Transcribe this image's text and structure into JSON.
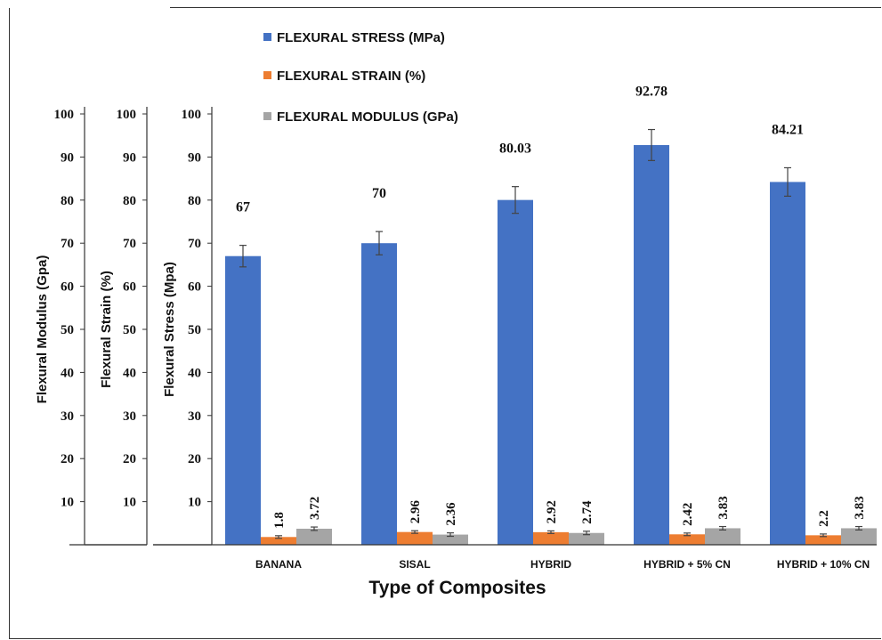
{
  "chart_data": {
    "type": "bar",
    "categories": [
      "BANANA",
      "SISAL",
      "HYBRID",
      "HYBRID + 5% CN",
      "HYBRID + 10% CN"
    ],
    "series": [
      {
        "name": "FLEXURAL STRESS (MPa)",
        "color": "#4472C4",
        "values": [
          67,
          70,
          80.03,
          92.78,
          84.21
        ],
        "errors": [
          2.5,
          2.7,
          3.1,
          3.6,
          3.3
        ],
        "labels": [
          "67",
          "70",
          "80.03",
          "92.78",
          "84.21"
        ]
      },
      {
        "name": "FLEXURAL STRAIN (%)",
        "color": "#ED7D31",
        "values": [
          1.8,
          2.96,
          2.92,
          2.42,
          2.2
        ],
        "errors": [
          0.3,
          0.3,
          0.3,
          0.3,
          0.3
        ],
        "labels": [
          "1.8",
          "2.96",
          "2.92",
          "2.42",
          "2.2"
        ]
      },
      {
        "name": "FLEXURAL MODULUS (GPa)",
        "color": "#A5A5A5",
        "values": [
          3.72,
          2.36,
          2.74,
          3.83,
          3.83
        ],
        "errors": [
          0.4,
          0.4,
          0.4,
          0.4,
          0.4
        ],
        "labels": [
          "3.72",
          "2.36",
          "2.74",
          "3.83",
          "3.83"
        ]
      }
    ],
    "xlabel": "Type of Composites",
    "ylabels": [
      "Flexural Modulus (Gpa)",
      "Flexural Strain (%)",
      "Flexural Stress (Mpa)"
    ],
    "yticks": [
      "100",
      "90",
      "80",
      "70",
      "60",
      "50",
      "40",
      "30",
      "20",
      "10"
    ],
    "ylim": [
      0,
      100
    ],
    "legend_position": "top",
    "grid": false
  }
}
